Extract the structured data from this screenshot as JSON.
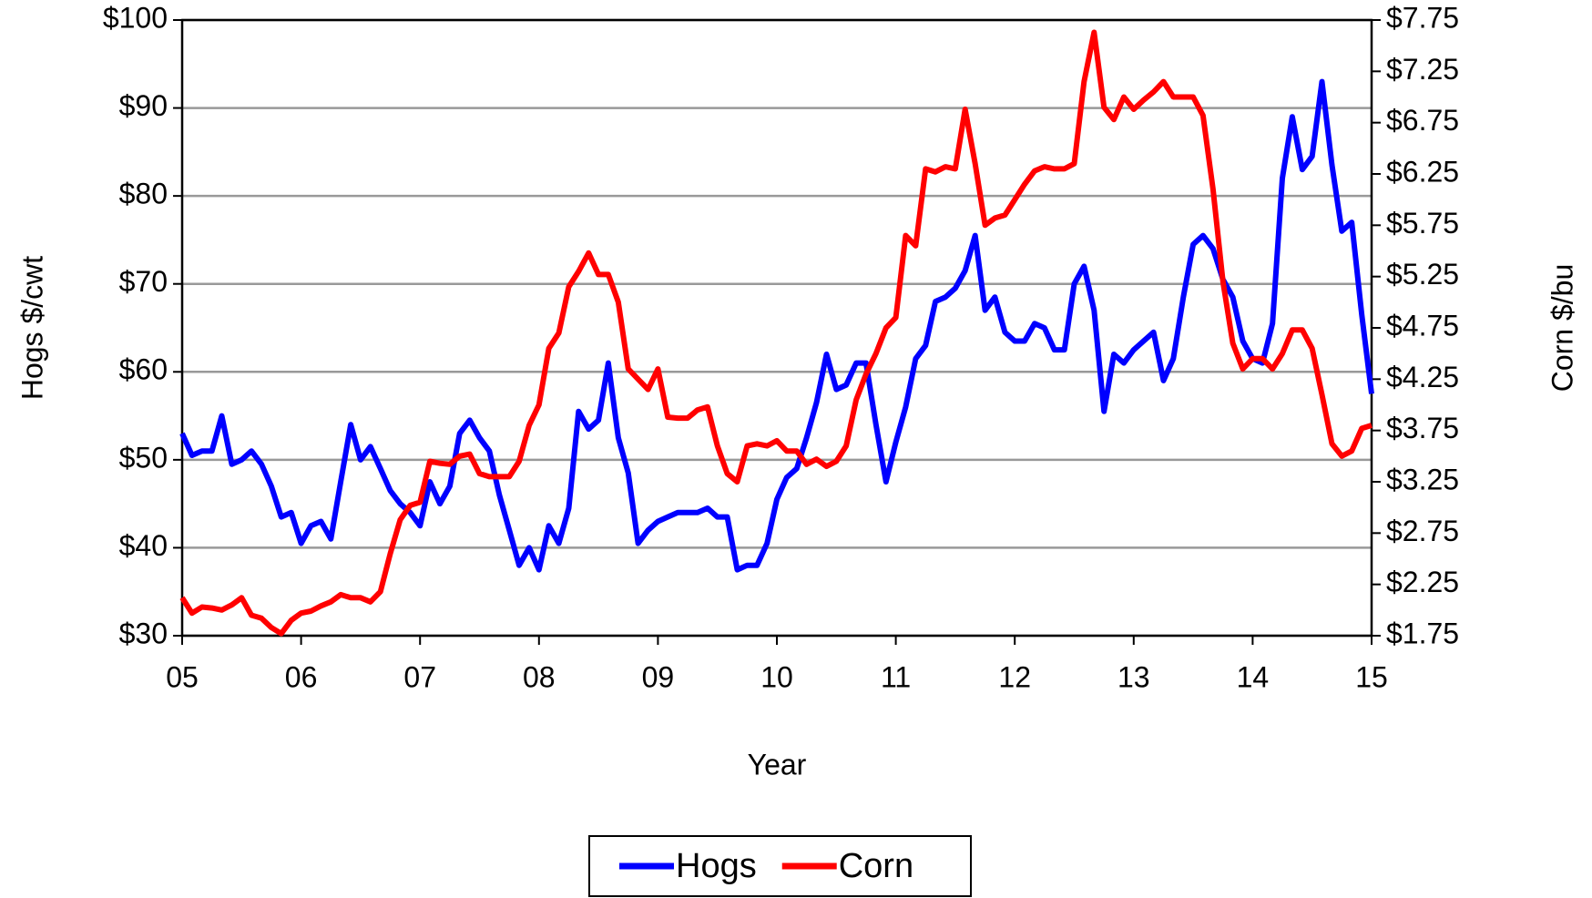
{
  "chart_data": {
    "type": "line",
    "x_label": "Year",
    "y_label": "Hogs $/cwt",
    "y2_label": "Corn $/bu",
    "x": [
      2005,
      2005.083,
      2005.167,
      2005.25,
      2005.333,
      2005.417,
      2005.5,
      2005.583,
      2005.667,
      2005.75,
      2005.833,
      2005.917,
      2006,
      2006.083,
      2006.167,
      2006.25,
      2006.333,
      2006.417,
      2006.5,
      2006.583,
      2006.667,
      2006.75,
      2006.833,
      2006.917,
      2007,
      2007.083,
      2007.167,
      2007.25,
      2007.333,
      2007.417,
      2007.5,
      2007.583,
      2007.667,
      2007.75,
      2007.833,
      2007.917,
      2008,
      2008.083,
      2008.167,
      2008.25,
      2008.333,
      2008.417,
      2008.5,
      2008.583,
      2008.667,
      2008.75,
      2008.833,
      2008.917,
      2009,
      2009.083,
      2009.167,
      2009.25,
      2009.333,
      2009.417,
      2009.5,
      2009.583,
      2009.667,
      2009.75,
      2009.833,
      2009.917,
      2010,
      2010.083,
      2010.167,
      2010.25,
      2010.333,
      2010.417,
      2010.5,
      2010.583,
      2010.667,
      2010.75,
      2010.833,
      2010.917,
      2011,
      2011.083,
      2011.167,
      2011.25,
      2011.333,
      2011.417,
      2011.5,
      2011.583,
      2011.667,
      2011.75,
      2011.833,
      2011.917,
      2012,
      2012.083,
      2012.167,
      2012.25,
      2012.333,
      2012.417,
      2012.5,
      2012.583,
      2012.667,
      2012.75,
      2012.833,
      2012.917,
      2013,
      2013.083,
      2013.167,
      2013.25,
      2013.333,
      2013.417,
      2013.5,
      2013.583,
      2013.667,
      2013.75,
      2013.833,
      2013.917,
      2014,
      2014.083,
      2014.167,
      2014.25,
      2014.333,
      2014.417,
      2014.5,
      2014.583,
      2014.667,
      2014.75,
      2014.833,
      2014.917,
      2015
    ],
    "series": [
      {
        "name": "Hogs",
        "color": "#0000ff",
        "values": [
          53,
          50.5,
          51,
          51,
          55,
          49.5,
          50,
          51,
          49.5,
          47,
          43.5,
          44,
          40.5,
          42.5,
          43,
          41,
          47.5,
          54,
          50,
          51.5,
          49,
          46.5,
          45,
          44,
          42.5,
          47.5,
          45,
          47,
          53,
          54.5,
          52.5,
          51,
          46,
          42,
          38,
          40,
          37.5,
          42.5,
          40.5,
          44.5,
          55.5,
          53.5,
          54.5,
          61,
          52.5,
          48.5,
          40.5,
          42,
          43,
          43.5,
          44,
          44,
          44,
          44.5,
          43.5,
          43.5,
          37.5,
          38,
          38,
          40.5,
          45.5,
          48,
          49,
          52.5,
          56.5,
          62,
          58,
          58.5,
          61,
          61,
          54,
          47.5,
          52,
          56,
          61.5,
          63,
          68,
          68.5,
          69.5,
          71.5,
          75.5,
          67,
          68.5,
          64.5,
          63.5,
          63.5,
          65.5,
          65,
          62.5,
          62.5,
          70,
          72,
          67,
          55.5,
          62,
          61,
          62.5,
          63.5,
          64.5,
          59,
          61.5,
          68.5,
          74.5,
          75.5,
          74,
          70.5,
          68.5,
          63.5,
          61.5,
          61,
          65.5,
          82,
          89,
          83,
          84.5,
          93,
          83.5,
          76,
          77,
          66.5,
          57.5
        ]
      },
      {
        "name": "Corn",
        "color": "#ff0000",
        "axis": "y2",
        "values": [
          2.12,
          1.97,
          2.03,
          2.02,
          2.0,
          2.05,
          2.12,
          1.95,
          1.92,
          1.83,
          1.77,
          1.9,
          1.97,
          1.99,
          2.04,
          2.08,
          2.15,
          2.12,
          2.12,
          2.08,
          2.18,
          2.55,
          2.88,
          3.02,
          3.05,
          3.45,
          3.43,
          3.42,
          3.5,
          3.52,
          3.33,
          3.3,
          3.3,
          3.3,
          3.45,
          3.8,
          4.0,
          4.55,
          4.7,
          5.15,
          5.3,
          5.48,
          5.27,
          5.27,
          5.0,
          4.35,
          4.25,
          4.15,
          4.35,
          3.88,
          3.87,
          3.87,
          3.95,
          3.98,
          3.6,
          3.33,
          3.25,
          3.6,
          3.62,
          3.6,
          3.65,
          3.55,
          3.55,
          3.42,
          3.47,
          3.4,
          3.45,
          3.6,
          4.05,
          4.3,
          4.5,
          4.75,
          4.85,
          5.65,
          5.55,
          6.3,
          6.27,
          6.32,
          6.3,
          6.88,
          6.35,
          5.75,
          5.82,
          5.85,
          6.0,
          6.15,
          6.28,
          6.32,
          6.3,
          6.3,
          6.35,
          7.15,
          7.63,
          6.9,
          6.78,
          7.0,
          6.88,
          6.97,
          7.05,
          7.15,
          7.0,
          7.0,
          7.0,
          6.82,
          6.1,
          5.2,
          4.6,
          4.35,
          4.45,
          4.45,
          4.35,
          4.5,
          4.73,
          4.73,
          4.55,
          4.1,
          3.62,
          3.5,
          3.55,
          3.77,
          3.8
        ]
      }
    ],
    "xlim": [
      2005,
      2015
    ],
    "xticks": [
      {
        "value": 2005,
        "label": "05"
      },
      {
        "value": 2006,
        "label": "06"
      },
      {
        "value": 2007,
        "label": "07"
      },
      {
        "value": 2008,
        "label": "08"
      },
      {
        "value": 2009,
        "label": "09"
      },
      {
        "value": 2010,
        "label": "10"
      },
      {
        "value": 2011,
        "label": "11"
      },
      {
        "value": 2012,
        "label": "12"
      },
      {
        "value": 2013,
        "label": "13"
      },
      {
        "value": 2014,
        "label": "14"
      },
      {
        "value": 2015,
        "label": "15"
      }
    ],
    "ylim": [
      30,
      100
    ],
    "yticks": [
      {
        "value": 30,
        "label": "$30"
      },
      {
        "value": 40,
        "label": "$40"
      },
      {
        "value": 50,
        "label": "$50"
      },
      {
        "value": 60,
        "label": "$60"
      },
      {
        "value": 70,
        "label": "$70"
      },
      {
        "value": 80,
        "label": "$80"
      },
      {
        "value": 90,
        "label": "$90"
      },
      {
        "value": 100,
        "label": "$100"
      }
    ],
    "y2lim": [
      1.75,
      7.75
    ],
    "y2ticks": [
      {
        "value": 1.75,
        "label": "$1.75"
      },
      {
        "value": 2.25,
        "label": "$2.25"
      },
      {
        "value": 2.75,
        "label": "$2.75"
      },
      {
        "value": 3.25,
        "label": "$3.25"
      },
      {
        "value": 3.75,
        "label": "$3.75"
      },
      {
        "value": 4.25,
        "label": "$4.25"
      },
      {
        "value": 4.75,
        "label": "$4.75"
      },
      {
        "value": 5.25,
        "label": "$5.25"
      },
      {
        "value": 5.75,
        "label": "$5.75"
      },
      {
        "value": 6.25,
        "label": "$6.25"
      },
      {
        "value": 6.75,
        "label": "$6.75"
      },
      {
        "value": 7.25,
        "label": "$7.25"
      },
      {
        "value": 7.75,
        "label": "$7.75"
      }
    ],
    "grid": true,
    "legend": "bottom"
  }
}
